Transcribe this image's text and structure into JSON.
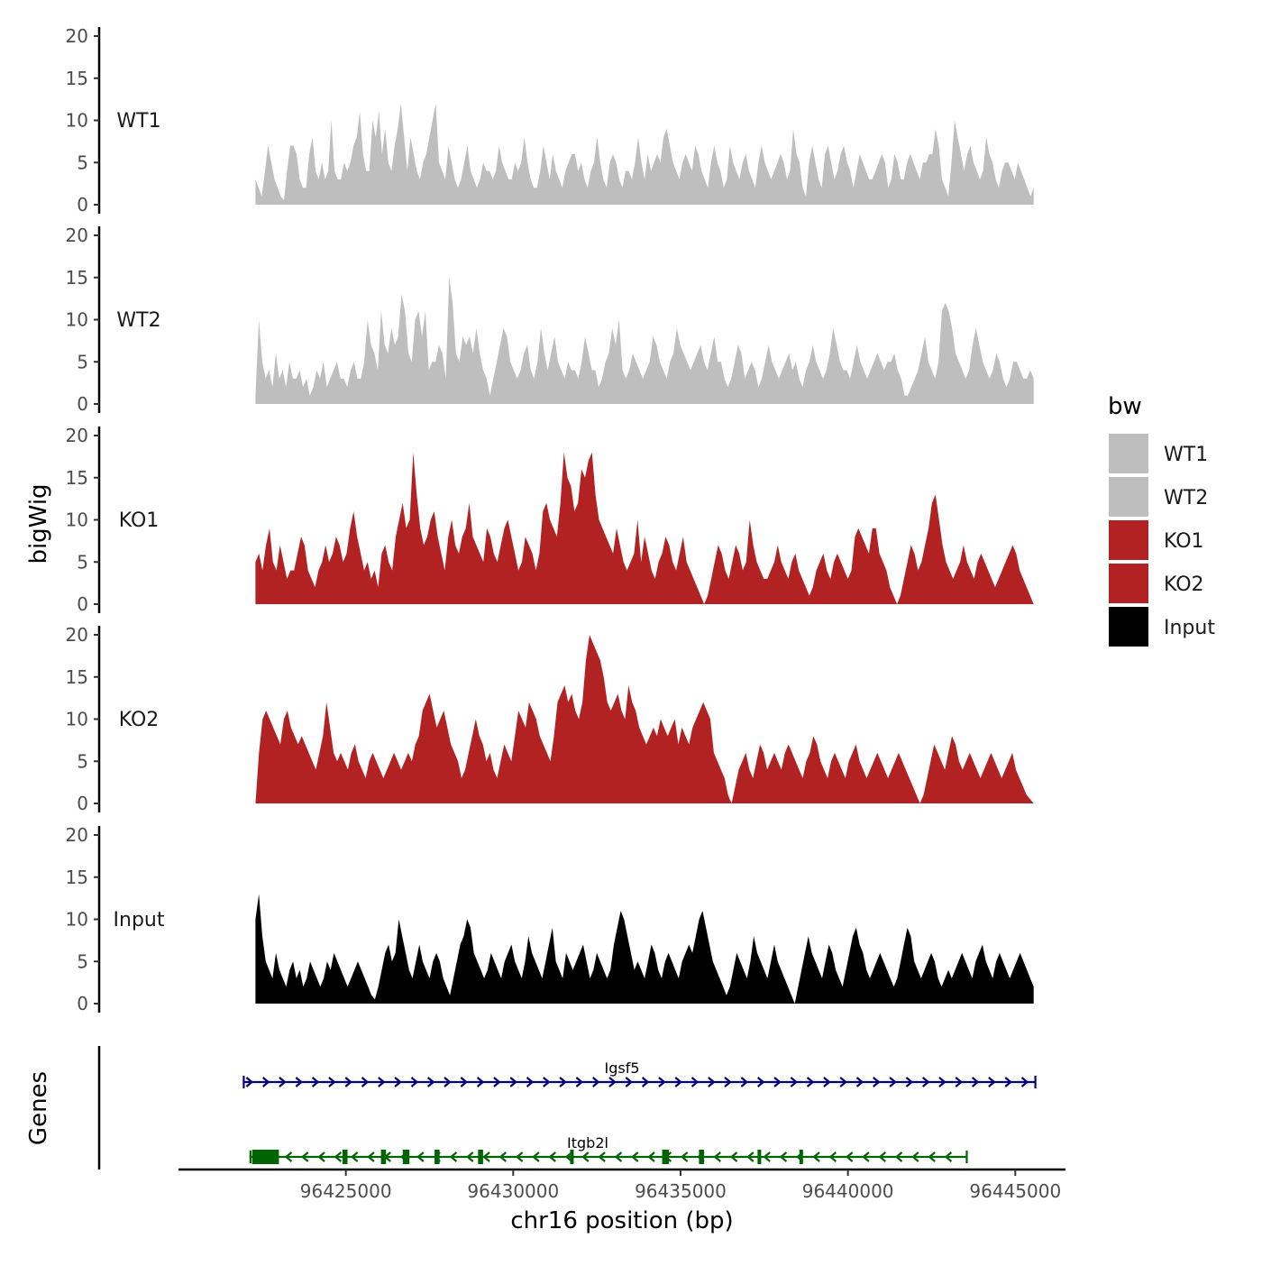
{
  "chart_data": {
    "type": "area",
    "x_title": "chr16 position (bp)",
    "y_title": "bigWig",
    "genes_title": "Genes",
    "x_range": [
      96420000,
      96446500
    ],
    "x_ticks": [
      "96425000",
      "96430000",
      "96435000",
      "96440000",
      "96445000"
    ],
    "x_tick_values": [
      96425000,
      96430000,
      96435000,
      96440000,
      96445000
    ],
    "y_range": [
      0,
      20
    ],
    "y_ticks": [
      "0",
      "5",
      "10",
      "15",
      "20"
    ],
    "y_tick_values": [
      0,
      5,
      10,
      15,
      20
    ],
    "legend": {
      "title": "bw",
      "items": [
        {
          "label": "WT1",
          "color": "#bebebe"
        },
        {
          "label": "WT2",
          "color": "#bebebe"
        },
        {
          "label": "KO1",
          "color": "#b22222"
        },
        {
          "label": "KO2",
          "color": "#b22222"
        },
        {
          "label": "Input",
          "color": "#000000"
        }
      ]
    },
    "x_start": 96422300,
    "x_end": 96445550,
    "series": [
      {
        "name": "WT1",
        "color": "#bebebe",
        "values": [
          3,
          2,
          1,
          4,
          7,
          5,
          3,
          2,
          1,
          0.5,
          4,
          7,
          7,
          6,
          3,
          2,
          2,
          6,
          8,
          4,
          3,
          5,
          3,
          4,
          10,
          4,
          3,
          3,
          5,
          4,
          5,
          7,
          8,
          11,
          6,
          4,
          4,
          10,
          8,
          11,
          6,
          9,
          5,
          4,
          7,
          9,
          12,
          8,
          4,
          8,
          6,
          4,
          3,
          5,
          6,
          8,
          10,
          12,
          5,
          4,
          3,
          7,
          5,
          3,
          2,
          3,
          5,
          7,
          4,
          3,
          2,
          3,
          5,
          4,
          4,
          3,
          4,
          7,
          5,
          4,
          3,
          3,
          5,
          4,
          5,
          8,
          5,
          3,
          2,
          2,
          4,
          7,
          5,
          3,
          6,
          4,
          3,
          2,
          4,
          5,
          6,
          6,
          4,
          5,
          3,
          2,
          4,
          5,
          8,
          5,
          3,
          2,
          5,
          6,
          5,
          3,
          2,
          4,
          4,
          3,
          5,
          8,
          5,
          3,
          6,
          4,
          5,
          6,
          5,
          8,
          9,
          7,
          5,
          4,
          3,
          5,
          6,
          5,
          4,
          7,
          6,
          4,
          3,
          2,
          5,
          7,
          5,
          4,
          2,
          3,
          7,
          5,
          4,
          3,
          5,
          6,
          4,
          3,
          2,
          5,
          7,
          5,
          4,
          3,
          4,
          5,
          6,
          5,
          3,
          4,
          9,
          6,
          5,
          2,
          1,
          5,
          7,
          5,
          3,
          2,
          6,
          7,
          5,
          3,
          4,
          6,
          7,
          5,
          4,
          2,
          4,
          6,
          5,
          4,
          3,
          3,
          4,
          5,
          6,
          5,
          2,
          3,
          6,
          5,
          3,
          3,
          5,
          6,
          5,
          4,
          3,
          5,
          5,
          6,
          6,
          9,
          7,
          3,
          2,
          1,
          5,
          10,
          8,
          6,
          4,
          6,
          7,
          5,
          4,
          3,
          4,
          8,
          6,
          5,
          3,
          2,
          4,
          5,
          5,
          4,
          3,
          5,
          4,
          3,
          2,
          1,
          2
        ]
      },
      {
        "name": "WT2",
        "color": "#bebebe",
        "values": [
          1,
          10,
          5,
          3,
          4,
          2,
          6,
          3,
          4,
          2,
          5,
          3,
          3,
          4,
          2,
          3,
          1,
          2,
          4,
          3,
          5,
          2,
          3,
          4,
          5,
          3,
          3,
          2,
          4,
          5,
          3,
          3,
          5,
          10,
          7,
          6,
          4,
          11,
          7,
          6,
          9,
          7,
          8,
          13,
          11,
          6,
          5,
          10,
          11,
          8,
          11,
          4,
          5,
          5,
          7,
          6,
          3,
          15,
          12,
          6,
          5,
          8,
          7,
          8,
          6,
          9,
          6,
          4,
          3,
          1,
          3,
          5,
          7,
          9,
          8,
          5,
          4,
          3,
          4,
          6,
          7,
          4,
          3,
          5,
          9,
          6,
          4,
          6,
          8,
          5,
          4,
          3,
          5,
          4,
          4,
          3,
          5,
          8,
          6,
          4,
          4,
          2,
          3,
          5,
          6,
          9,
          7,
          10,
          4,
          3,
          4,
          6,
          5,
          4,
          3,
          4,
          5,
          8,
          7,
          5,
          4,
          3,
          5,
          6,
          9,
          7,
          6,
          5,
          4,
          5,
          6,
          7,
          5,
          4,
          6,
          8,
          5,
          5,
          3,
          2,
          3,
          5,
          7,
          6,
          3,
          4,
          5,
          4,
          2,
          3,
          5,
          7,
          5,
          4,
          3,
          4,
          5,
          6,
          4,
          5,
          3,
          2,
          4,
          5,
          7,
          5,
          4,
          3,
          4,
          6,
          9,
          7,
          5,
          4,
          4,
          3,
          5,
          7,
          5,
          4,
          3,
          4,
          5,
          6,
          5,
          4,
          5,
          5,
          6,
          4,
          3,
          1,
          1,
          2,
          3,
          4,
          6,
          8,
          5,
          4,
          3,
          5,
          11,
          12,
          11,
          9,
          6,
          5,
          4,
          3,
          4,
          7,
          9,
          7,
          5,
          4,
          3,
          4,
          6,
          5,
          3,
          2,
          3,
          5,
          5,
          4,
          3,
          3,
          4,
          3
        ]
      },
      {
        "name": "KO1",
        "color": "#b22222",
        "values": [
          5,
          6,
          4,
          7,
          9,
          5,
          4,
          7,
          5,
          3,
          4,
          4,
          6,
          8,
          7,
          4,
          3,
          2,
          4,
          5,
          7,
          5,
          6,
          8,
          7,
          5,
          6,
          9,
          11,
          8,
          6,
          4,
          5,
          3,
          4,
          2,
          6,
          7,
          5,
          4,
          8,
          10,
          12,
          9,
          10,
          18,
          13,
          9,
          7,
          8,
          10,
          11,
          8,
          6,
          4,
          8,
          10,
          7,
          6,
          8,
          9,
          12,
          8,
          7,
          6,
          5,
          9,
          8,
          6,
          5,
          7,
          9,
          10,
          8,
          6,
          4,
          5,
          8,
          7,
          6,
          4,
          6,
          11,
          12,
          10,
          9,
          8,
          12,
          18,
          15,
          14,
          11,
          12,
          16,
          15,
          17,
          18,
          13,
          10,
          9,
          8,
          7,
          6,
          9,
          7,
          5,
          4,
          5,
          6,
          10,
          5,
          8,
          6,
          4,
          3,
          5,
          6,
          8,
          7,
          5,
          4,
          6,
          8,
          5,
          4,
          3,
          2,
          1,
          0,
          1,
          3,
          5,
          7,
          6,
          4,
          3,
          5,
          7,
          6,
          4,
          5,
          10,
          7,
          5,
          4,
          3,
          3,
          4,
          5,
          7,
          5,
          4,
          3,
          5,
          6,
          4,
          3,
          2,
          1,
          2,
          4,
          5,
          6,
          4,
          3,
          5,
          6,
          5,
          4,
          3,
          4,
          8,
          9,
          8,
          7,
          6,
          9,
          9,
          6,
          5,
          4,
          2,
          1,
          0,
          1,
          3,
          5,
          7,
          6,
          4,
          5,
          7,
          9,
          12,
          13,
          10,
          7,
          5,
          4,
          3,
          4,
          5,
          7,
          5,
          4,
          3,
          5,
          6,
          5,
          4,
          3,
          2,
          3,
          4,
          5,
          6,
          7,
          6,
          4,
          3,
          2,
          1,
          0
        ]
      },
      {
        "name": "KO2",
        "color": "#b22222",
        "values": [
          0,
          6,
          10,
          11,
          10,
          9,
          8,
          7,
          10,
          11,
          9,
          8,
          7,
          8,
          7,
          6,
          5,
          4,
          6,
          8,
          12,
          9,
          6,
          5,
          6,
          5,
          4,
          6,
          7,
          5,
          4,
          3,
          5,
          6,
          5,
          4,
          3,
          4,
          5,
          6,
          5,
          4,
          5,
          6,
          5,
          7,
          8,
          11,
          12,
          13,
          11,
          9,
          10,
          11,
          9,
          7,
          6,
          5,
          3,
          4,
          6,
          8,
          10,
          8,
          7,
          5,
          6,
          4,
          3,
          5,
          7,
          6,
          5,
          8,
          11,
          10,
          9,
          12,
          11,
          10,
          8,
          7,
          6,
          5,
          8,
          12,
          13,
          14,
          12,
          13,
          11,
          10,
          12,
          17,
          20,
          19,
          18,
          17,
          15,
          12,
          11,
          12,
          13,
          11,
          10,
          14,
          12,
          11,
          9,
          8,
          7,
          8,
          9,
          8,
          10,
          9,
          8,
          9,
          10,
          7,
          9,
          8,
          7,
          9,
          10,
          11,
          12,
          11,
          10,
          6,
          5,
          4,
          3,
          1,
          0,
          2,
          4,
          5,
          6,
          4,
          3,
          5,
          7,
          6,
          4,
          5,
          6,
          5,
          4,
          6,
          7,
          6,
          5,
          4,
          3,
          5,
          6,
          8,
          7,
          5,
          4,
          3,
          5,
          6,
          5,
          4,
          3,
          5,
          6,
          7,
          5,
          4,
          3,
          4,
          5,
          6,
          5,
          4,
          3,
          4,
          5,
          6,
          5,
          4,
          3,
          2,
          1,
          0,
          1,
          3,
          5,
          7,
          6,
          5,
          4,
          6,
          8,
          7,
          5,
          4,
          5,
          6,
          5,
          4,
          3,
          4,
          5,
          6,
          5,
          4,
          3,
          4,
          5,
          6,
          4,
          3,
          2,
          1,
          0.5,
          0
        ]
      },
      {
        "name": "Input",
        "color": "#000000",
        "values": [
          10,
          13,
          8,
          5,
          4,
          3,
          6,
          4,
          3,
          2,
          4,
          5,
          3,
          4,
          2,
          3,
          5,
          4,
          3,
          2,
          3,
          5,
          4,
          6,
          5,
          4,
          3,
          2,
          3,
          4,
          5,
          4,
          3,
          2,
          1,
          0.5,
          2,
          4,
          6,
          7,
          5,
          6,
          10,
          8,
          6,
          4,
          3,
          5,
          7,
          5,
          4,
          3,
          5,
          6,
          5,
          3,
          2,
          1,
          3,
          5,
          7,
          8,
          10,
          9,
          6,
          5,
          4,
          3,
          4,
          6,
          5,
          4,
          3,
          5,
          6,
          7,
          5,
          4,
          3,
          5,
          8,
          6,
          5,
          4,
          3,
          5,
          7,
          9,
          5,
          4,
          3,
          6,
          5,
          4,
          5,
          6,
          7,
          5,
          3,
          4,
          6,
          5,
          4,
          3,
          4,
          7,
          9,
          11,
          10,
          8,
          6,
          4,
          5,
          4,
          3,
          5,
          7,
          6,
          4,
          3,
          5,
          6,
          5,
          4,
          3,
          5,
          6,
          7,
          6,
          8,
          10,
          11,
          9,
          7,
          5,
          4,
          3,
          2,
          1,
          2,
          4,
          6,
          5,
          4,
          3,
          5,
          8,
          6,
          5,
          4,
          3,
          5,
          7,
          5,
          4,
          3,
          2,
          1,
          0,
          2,
          4,
          6,
          8,
          6,
          5,
          4,
          3,
          5,
          7,
          6,
          4,
          3,
          2,
          4,
          6,
          8,
          9,
          7,
          6,
          4,
          3,
          4,
          5,
          6,
          5,
          4,
          3,
          2,
          3,
          5,
          7,
          9,
          8,
          5,
          4,
          3,
          4,
          5,
          6,
          5,
          3,
          2,
          3,
          4,
          3,
          4,
          5,
          6,
          5,
          4,
          3,
          5,
          6,
          7,
          5,
          4,
          3,
          5,
          6,
          5,
          4,
          3,
          4,
          5,
          6,
          5,
          4,
          3,
          2
        ]
      }
    ],
    "genes": [
      {
        "name": "Igsf5",
        "strand": "+",
        "color": "#000080",
        "start": 96421950,
        "end": 96445600,
        "exons": []
      },
      {
        "name": "Itgb2l",
        "strand": "-",
        "color": "#006400",
        "start": 96422150,
        "end": 96443550,
        "exons": [
          [
            96422200,
            96423000
          ],
          [
            96424900,
            96425050
          ],
          [
            96426050,
            96426200
          ],
          [
            96426700,
            96426900
          ],
          [
            96427650,
            96427800
          ],
          [
            96428950,
            96429100
          ],
          [
            96431700,
            96431800
          ],
          [
            96434450,
            96434650
          ],
          [
            96435550,
            96435700
          ],
          [
            96437300,
            96437400
          ],
          [
            96438550,
            96438650
          ]
        ]
      }
    ]
  }
}
